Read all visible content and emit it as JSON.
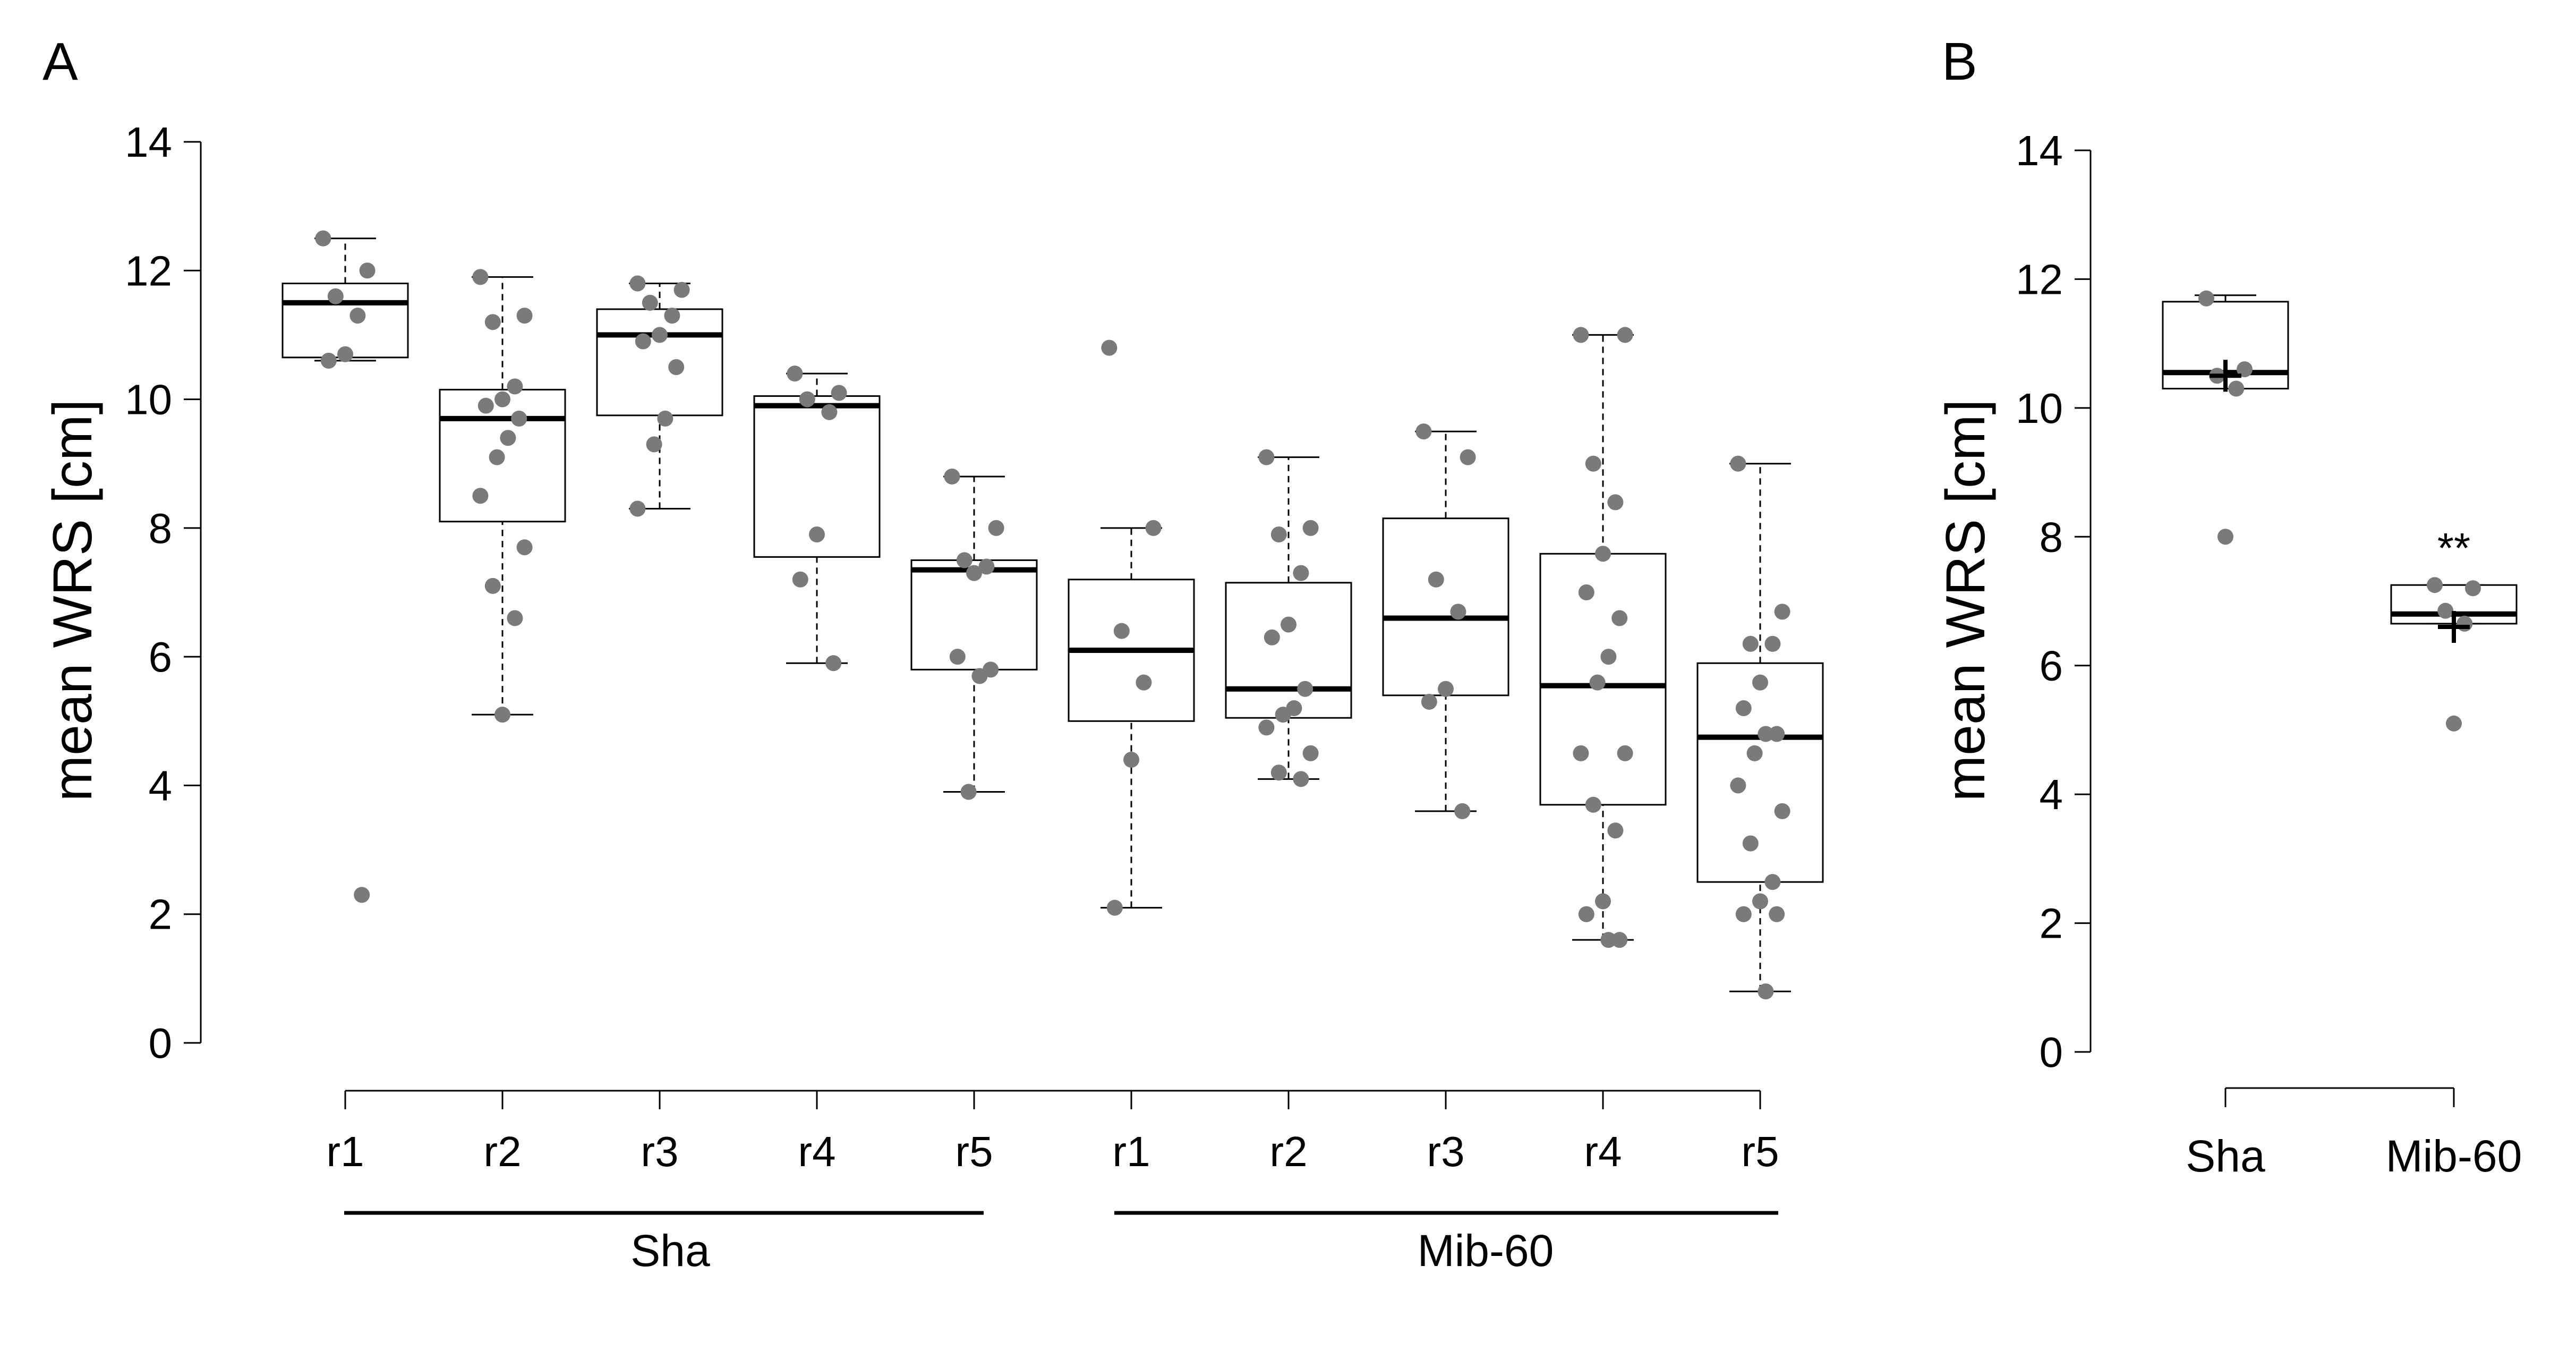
{
  "panels": {
    "a": {
      "letter": "A"
    },
    "b": {
      "letter": "B"
    }
  },
  "chart_data": [
    {
      "panel": "A",
      "type": "box",
      "ylabel": "mean WRS [cm]",
      "ylim": [
        0,
        14
      ],
      "yticks": [
        0,
        2,
        4,
        6,
        8,
        10,
        12,
        14
      ],
      "groups": [
        {
          "label": "Sha",
          "categories": [
            "r1",
            "r2",
            "r3",
            "r4",
            "r5"
          ]
        },
        {
          "label": "Mib-60",
          "categories": [
            "r1",
            "r2",
            "r3",
            "r4",
            "r5"
          ]
        }
      ],
      "boxes": [
        {
          "group": "Sha",
          "category": "r1",
          "min": 10.6,
          "q1": 10.65,
          "median": 11.5,
          "q3": 11.8,
          "max": 12.5,
          "points": [
            12.5,
            12.0,
            11.6,
            11.3,
            10.7,
            10.6,
            2.3
          ]
        },
        {
          "group": "Sha",
          "category": "r2",
          "min": 5.1,
          "q1": 8.1,
          "median": 9.7,
          "q3": 10.15,
          "max": 11.9,
          "points": [
            11.9,
            11.3,
            11.2,
            10.2,
            10.0,
            9.9,
            9.7,
            9.4,
            9.1,
            8.5,
            7.7,
            7.1,
            6.6,
            5.1
          ]
        },
        {
          "group": "Sha",
          "category": "r3",
          "min": 8.3,
          "q1": 9.75,
          "median": 11.0,
          "q3": 11.4,
          "max": 11.8,
          "points": [
            11.8,
            11.7,
            11.5,
            11.3,
            11.0,
            10.9,
            10.5,
            9.7,
            9.3,
            8.3
          ]
        },
        {
          "group": "Sha",
          "category": "r4",
          "min": 5.9,
          "q1": 7.55,
          "median": 9.9,
          "q3": 10.05,
          "max": 10.4,
          "points": [
            10.4,
            10.1,
            10.0,
            9.8,
            7.9,
            7.2,
            5.9
          ]
        },
        {
          "group": "Sha",
          "category": "r5",
          "min": 3.9,
          "q1": 5.8,
          "median": 7.35,
          "q3": 7.5,
          "max": 8.8,
          "points": [
            8.8,
            8.0,
            7.5,
            7.4,
            7.3,
            6.0,
            5.8,
            5.7,
            3.9
          ]
        },
        {
          "group": "Mib-60",
          "category": "r1",
          "min": 2.1,
          "q1": 5.0,
          "median": 6.1,
          "q3": 7.2,
          "max": 8.0,
          "points": [
            10.8,
            8.0,
            6.4,
            5.6,
            4.4,
            2.1
          ]
        },
        {
          "group": "Mib-60",
          "category": "r2",
          "min": 4.1,
          "q1": 5.05,
          "median": 5.5,
          "q3": 7.15,
          "max": 9.1,
          "points": [
            9.1,
            8.0,
            7.9,
            7.3,
            6.5,
            6.3,
            5.5,
            5.2,
            5.1,
            4.9,
            4.5,
            4.2,
            4.1
          ]
        },
        {
          "group": "Mib-60",
          "category": "r3",
          "min": 3.6,
          "q1": 5.4,
          "median": 6.6,
          "q3": 8.15,
          "max": 9.5,
          "points": [
            9.5,
            9.1,
            7.2,
            6.7,
            5.5,
            5.3,
            3.6
          ]
        },
        {
          "group": "Mib-60",
          "category": "r4",
          "min": 1.6,
          "q1": 3.7,
          "median": 5.55,
          "q3": 7.6,
          "max": 11.0,
          "points": [
            11.0,
            11.0,
            9.0,
            8.4,
            7.6,
            7.0,
            6.6,
            6.0,
            5.6,
            4.5,
            4.5,
            3.7,
            3.3,
            2.2,
            2.0,
            1.6,
            1.6
          ]
        },
        {
          "group": "Mib-60",
          "category": "r5",
          "min": 0.8,
          "q1": 2.5,
          "median": 4.75,
          "q3": 5.9,
          "max": 9.0,
          "points": [
            9.0,
            6.7,
            6.2,
            6.2,
            5.6,
            5.2,
            4.8,
            4.8,
            4.5,
            4.0,
            3.6,
            3.1,
            2.5,
            2.2,
            2.0,
            2.0,
            0.8
          ]
        }
      ]
    },
    {
      "panel": "B",
      "type": "box",
      "ylabel": "mean WRS [cm]",
      "ylim": [
        0,
        14
      ],
      "yticks": [
        0,
        2,
        4,
        6,
        8,
        10,
        12,
        14
      ],
      "categories": [
        "Sha",
        "Mib-60"
      ],
      "boxes": [
        {
          "category": "Sha",
          "min": 10.3,
          "q1": 10.3,
          "median": 10.55,
          "q3": 11.65,
          "max": 11.75,
          "mean": 10.5,
          "points": [
            11.7,
            10.6,
            10.5,
            10.3,
            8.0
          ]
        },
        {
          "category": "Mib-60",
          "min": 6.65,
          "q1": 6.65,
          "median": 6.8,
          "q3": 7.25,
          "max": 7.25,
          "mean": 6.6,
          "points": [
            7.25,
            7.2,
            6.85,
            6.65,
            5.1
          ],
          "annotation": "**"
        }
      ]
    }
  ]
}
